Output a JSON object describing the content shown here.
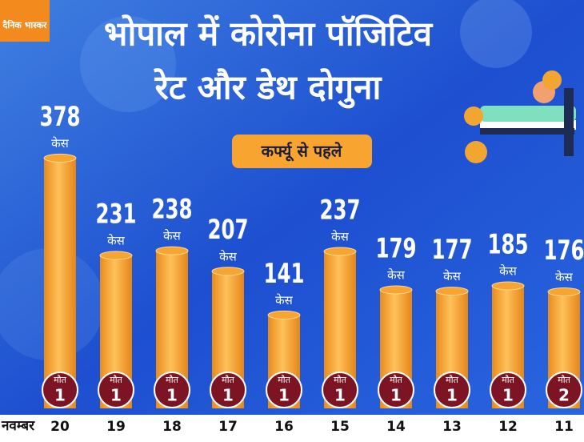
{
  "logo": "दैनिक भास्कर",
  "chart_data": {
    "type": "bar",
    "title": [
      "भोपाल में कोरोना पॉजिटिव",
      "रेट और डेथ दोगुना"
    ],
    "subtitle": "कर्फ्यू से पहले",
    "x_label": "नवम्बर",
    "categories": [
      "20",
      "19",
      "18",
      "17",
      "16",
      "15",
      "14",
      "13",
      "12",
      "11"
    ],
    "values": [
      378,
      231,
      238,
      207,
      141,
      237,
      179,
      177,
      185,
      176
    ],
    "unit_label": "केस",
    "color": "#f7a530",
    "deaths": {
      "label": "मौत",
      "values": [
        1,
        1,
        1,
        1,
        1,
        1,
        1,
        1,
        1,
        2
      ],
      "color": "#7c1423"
    }
  }
}
